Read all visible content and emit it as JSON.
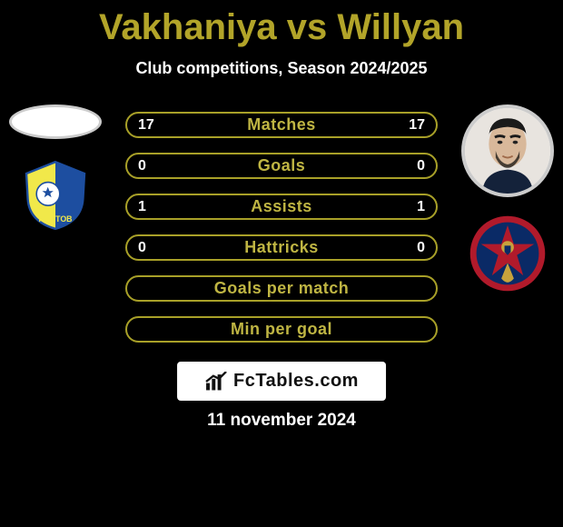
{
  "title_color": "#b2a429",
  "player_left": "Vakhaniya",
  "player_right": "Willyan",
  "subtitle": "Club competitions, Season 2024/2025",
  "stats": {
    "border_color": "#a8a028",
    "label_color": "#bfb543",
    "rows": [
      {
        "label": "Matches",
        "left": "17",
        "right": "17"
      },
      {
        "label": "Goals",
        "left": "0",
        "right": "0"
      },
      {
        "label": "Assists",
        "left": "1",
        "right": "1"
      },
      {
        "label": "Hattricks",
        "left": "0",
        "right": "0"
      },
      {
        "label": "Goals per match",
        "left": "",
        "right": ""
      },
      {
        "label": "Min per goal",
        "left": "",
        "right": ""
      }
    ]
  },
  "club_left": {
    "bg": "#f1e84a",
    "accent": "#1d4ea0"
  },
  "club_right": {
    "bg": "#b11a2b",
    "accent": "#0a2a66",
    "gold": "#c7a23c"
  },
  "branding": "FcTables.com",
  "date": "11 november 2024"
}
